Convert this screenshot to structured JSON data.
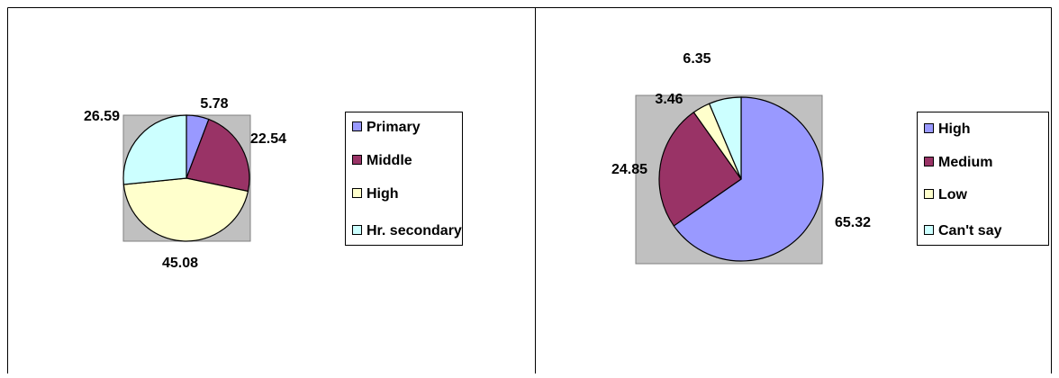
{
  "chart_data": [
    {
      "type": "pie",
      "categories": [
        "Primary",
        "Middle",
        "High",
        "Hr. secondary"
      ],
      "values": [
        5.78,
        22.54,
        45.08,
        26.59
      ],
      "colors": [
        "#9999ff",
        "#993366",
        "#ffffcc",
        "#ccffff"
      ]
    },
    {
      "type": "pie",
      "categories": [
        "High",
        "Medium",
        "Low",
        "Can't say"
      ],
      "values": [
        65.32,
        24.85,
        3.46,
        6.35
      ],
      "colors": [
        "#9999ff",
        "#993366",
        "#ffffcc",
        "#ccffff"
      ]
    }
  ]
}
